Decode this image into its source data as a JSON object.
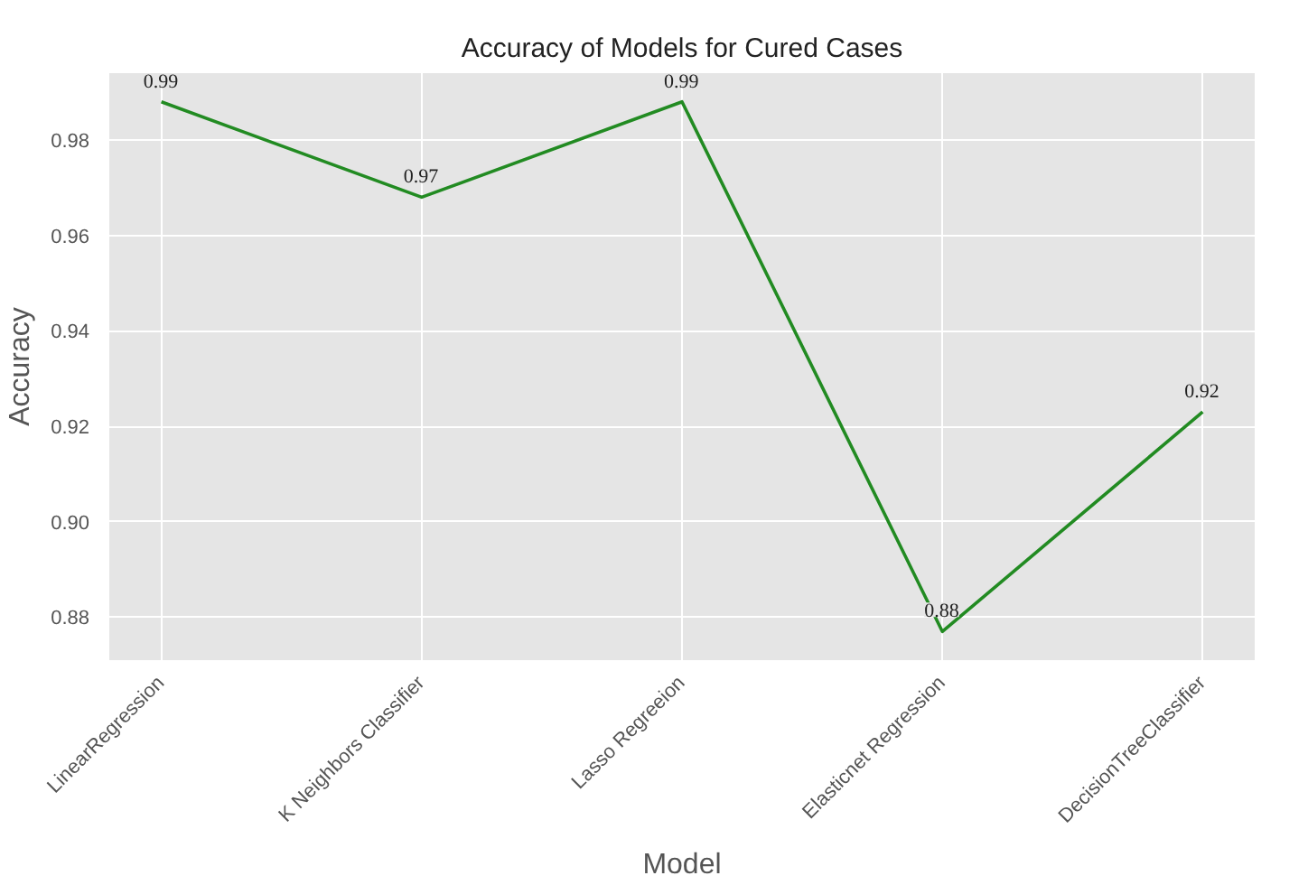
{
  "chart_data": {
    "type": "line",
    "title": "Accuracy of Models for Cured Cases",
    "xlabel": "Model",
    "ylabel": "Accuracy",
    "categories": [
      "LinearRegression",
      "K Neighbors Classifier",
      "Lasso Regreeion",
      "Elasticnet Regression",
      "DecisionTreeClassifier"
    ],
    "series": [
      {
        "color": "#228b22",
        "values": [
          0.988,
          0.968,
          0.988,
          0.877,
          0.923
        ],
        "value_labels": [
          "0.99",
          "0.97",
          "0.99",
          "0.88",
          "0.92"
        ]
      }
    ],
    "ylim": [
      0.871,
      0.994
    ],
    "yticks": [
      {
        "value": 0.88,
        "label": "0.88"
      },
      {
        "value": 0.9,
        "label": "0.90"
      },
      {
        "value": 0.92,
        "label": "0.92"
      },
      {
        "value": 0.94,
        "label": "0.94"
      },
      {
        "value": 0.96,
        "label": "0.96"
      },
      {
        "value": 0.98,
        "label": "0.98"
      }
    ],
    "grid": true,
    "marker": "none",
    "line_style": "solid"
  }
}
